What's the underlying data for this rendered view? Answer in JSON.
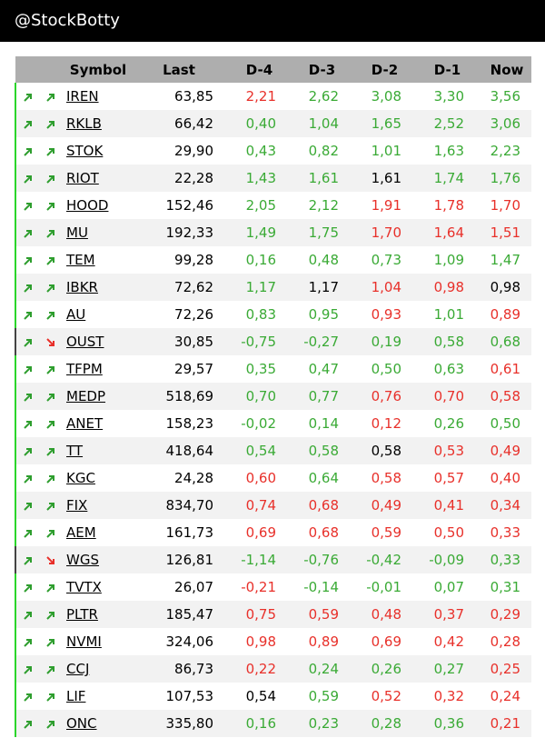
{
  "header": {
    "title": "@StockBotty"
  },
  "colors": {
    "up": "#3aaa35",
    "down": "#e8302a",
    "neutral": "#000000",
    "up_arrow": "#2e9e2e",
    "down_arrow": "#e8302a"
  },
  "table": {
    "columns": [
      "Symbol",
      "Last",
      "D-4",
      "D-3",
      "D-2",
      "D-1",
      "Now"
    ],
    "rows": [
      {
        "dir": "up",
        "i1": "trend-up-icon",
        "symbol": "IREN",
        "last": "63,85",
        "vals": [
          [
            "2,21",
            "r"
          ],
          [
            "2,62",
            "g"
          ],
          [
            "3,08",
            "g"
          ],
          [
            "3,30",
            "g"
          ],
          [
            "3,56",
            "g"
          ]
        ]
      },
      {
        "dir": "up",
        "symbol": "RKLB",
        "last": "66,42",
        "vals": [
          [
            "0,40",
            "g"
          ],
          [
            "1,04",
            "g"
          ],
          [
            "1,65",
            "g"
          ],
          [
            "2,52",
            "g"
          ],
          [
            "3,06",
            "g"
          ]
        ]
      },
      {
        "dir": "up",
        "symbol": "STOK",
        "last": "29,90",
        "vals": [
          [
            "0,43",
            "g"
          ],
          [
            "0,82",
            "g"
          ],
          [
            "1,01",
            "g"
          ],
          [
            "1,63",
            "g"
          ],
          [
            "2,23",
            "g"
          ]
        ]
      },
      {
        "dir": "up",
        "symbol": "RIOT",
        "last": "22,28",
        "vals": [
          [
            "1,43",
            "g"
          ],
          [
            "1,61",
            "g"
          ],
          [
            "1,61",
            "b"
          ],
          [
            "1,74",
            "g"
          ],
          [
            "1,76",
            "g"
          ]
        ]
      },
      {
        "dir": "up",
        "symbol": "HOOD",
        "last": "152,46",
        "vals": [
          [
            "2,05",
            "g"
          ],
          [
            "2,12",
            "g"
          ],
          [
            "1,91",
            "r"
          ],
          [
            "1,78",
            "r"
          ],
          [
            "1,70",
            "r"
          ]
        ]
      },
      {
        "dir": "up",
        "symbol": "MU",
        "last": "192,33",
        "vals": [
          [
            "1,49",
            "g"
          ],
          [
            "1,75",
            "g"
          ],
          [
            "1,70",
            "r"
          ],
          [
            "1,64",
            "r"
          ],
          [
            "1,51",
            "r"
          ]
        ]
      },
      {
        "dir": "up",
        "symbol": "TEM",
        "last": "99,28",
        "vals": [
          [
            "0,16",
            "g"
          ],
          [
            "0,48",
            "g"
          ],
          [
            "0,73",
            "g"
          ],
          [
            "1,09",
            "g"
          ],
          [
            "1,47",
            "g"
          ]
        ]
      },
      {
        "dir": "up",
        "symbol": "IBKR",
        "last": "72,62",
        "vals": [
          [
            "1,17",
            "g"
          ],
          [
            "1,17",
            "b"
          ],
          [
            "1,04",
            "r"
          ],
          [
            "0,98",
            "r"
          ],
          [
            "0,98",
            "b"
          ]
        ]
      },
      {
        "dir": "up",
        "symbol": "AU",
        "last": "72,26",
        "vals": [
          [
            "0,83",
            "g"
          ],
          [
            "0,95",
            "g"
          ],
          [
            "0,93",
            "r"
          ],
          [
            "1,01",
            "g"
          ],
          [
            "0,89",
            "r"
          ]
        ]
      },
      {
        "dir": "down",
        "symbol": "OUST",
        "last": "30,85",
        "vals": [
          [
            "-0,75",
            "g"
          ],
          [
            "-0,27",
            "g"
          ],
          [
            "0,19",
            "g"
          ],
          [
            "0,58",
            "g"
          ],
          [
            "0,68",
            "g"
          ]
        ]
      },
      {
        "dir": "up",
        "symbol": "TFPM",
        "last": "29,57",
        "vals": [
          [
            "0,35",
            "g"
          ],
          [
            "0,47",
            "g"
          ],
          [
            "0,50",
            "g"
          ],
          [
            "0,63",
            "g"
          ],
          [
            "0,61",
            "r"
          ]
        ]
      },
      {
        "dir": "up",
        "symbol": "MEDP",
        "last": "518,69",
        "vals": [
          [
            "0,70",
            "g"
          ],
          [
            "0,77",
            "g"
          ],
          [
            "0,76",
            "r"
          ],
          [
            "0,70",
            "r"
          ],
          [
            "0,58",
            "r"
          ]
        ]
      },
      {
        "dir": "up",
        "symbol": "ANET",
        "last": "158,23",
        "vals": [
          [
            "-0,02",
            "g"
          ],
          [
            "0,14",
            "g"
          ],
          [
            "0,12",
            "r"
          ],
          [
            "0,26",
            "g"
          ],
          [
            "0,50",
            "g"
          ]
        ]
      },
      {
        "dir": "up",
        "symbol": "TT",
        "last": "418,64",
        "vals": [
          [
            "0,54",
            "g"
          ],
          [
            "0,58",
            "g"
          ],
          [
            "0,58",
            "b"
          ],
          [
            "0,53",
            "r"
          ],
          [
            "0,49",
            "r"
          ]
        ]
      },
      {
        "dir": "up",
        "symbol": "KGC",
        "last": "24,28",
        "vals": [
          [
            "0,60",
            "r"
          ],
          [
            "0,64",
            "g"
          ],
          [
            "0,58",
            "r"
          ],
          [
            "0,57",
            "r"
          ],
          [
            "0,40",
            "r"
          ]
        ]
      },
      {
        "dir": "up",
        "symbol": "FIX",
        "last": "834,70",
        "vals": [
          [
            "0,74",
            "r"
          ],
          [
            "0,68",
            "r"
          ],
          [
            "0,49",
            "r"
          ],
          [
            "0,41",
            "r"
          ],
          [
            "0,34",
            "r"
          ]
        ]
      },
      {
        "dir": "up",
        "symbol": "AEM",
        "last": "161,73",
        "vals": [
          [
            "0,69",
            "r"
          ],
          [
            "0,68",
            "r"
          ],
          [
            "0,59",
            "r"
          ],
          [
            "0,50",
            "r"
          ],
          [
            "0,33",
            "r"
          ]
        ]
      },
      {
        "dir": "down",
        "symbol": "WGS",
        "last": "126,81",
        "vals": [
          [
            "-1,14",
            "g"
          ],
          [
            "-0,76",
            "g"
          ],
          [
            "-0,42",
            "g"
          ],
          [
            "-0,09",
            "g"
          ],
          [
            "0,33",
            "g"
          ]
        ]
      },
      {
        "dir": "up",
        "symbol": "TVTX",
        "last": "26,07",
        "vals": [
          [
            "-0,21",
            "r"
          ],
          [
            "-0,14",
            "g"
          ],
          [
            "-0,01",
            "g"
          ],
          [
            "0,07",
            "g"
          ],
          [
            "0,31",
            "g"
          ]
        ]
      },
      {
        "dir": "up",
        "symbol": "PLTR",
        "last": "185,47",
        "vals": [
          [
            "0,75",
            "r"
          ],
          [
            "0,59",
            "r"
          ],
          [
            "0,48",
            "r"
          ],
          [
            "0,37",
            "r"
          ],
          [
            "0,29",
            "r"
          ]
        ]
      },
      {
        "dir": "up",
        "symbol": "NVMI",
        "last": "324,06",
        "vals": [
          [
            "0,98",
            "r"
          ],
          [
            "0,89",
            "r"
          ],
          [
            "0,69",
            "r"
          ],
          [
            "0,42",
            "r"
          ],
          [
            "0,28",
            "r"
          ]
        ]
      },
      {
        "dir": "up",
        "symbol": "CCJ",
        "last": "86,73",
        "vals": [
          [
            "0,22",
            "r"
          ],
          [
            "0,24",
            "g"
          ],
          [
            "0,26",
            "g"
          ],
          [
            "0,27",
            "g"
          ],
          [
            "0,25",
            "r"
          ]
        ]
      },
      {
        "dir": "up",
        "symbol": "LIF",
        "last": "107,53",
        "vals": [
          [
            "0,54",
            "b"
          ],
          [
            "0,59",
            "g"
          ],
          [
            "0,52",
            "r"
          ],
          [
            "0,32",
            "r"
          ],
          [
            "0,24",
            "r"
          ]
        ]
      },
      {
        "dir": "up",
        "symbol": "ONC",
        "last": "335,80",
        "vals": [
          [
            "0,16",
            "g"
          ],
          [
            "0,23",
            "g"
          ],
          [
            "0,28",
            "g"
          ],
          [
            "0,36",
            "g"
          ],
          [
            "0,21",
            "r"
          ]
        ]
      }
    ]
  }
}
